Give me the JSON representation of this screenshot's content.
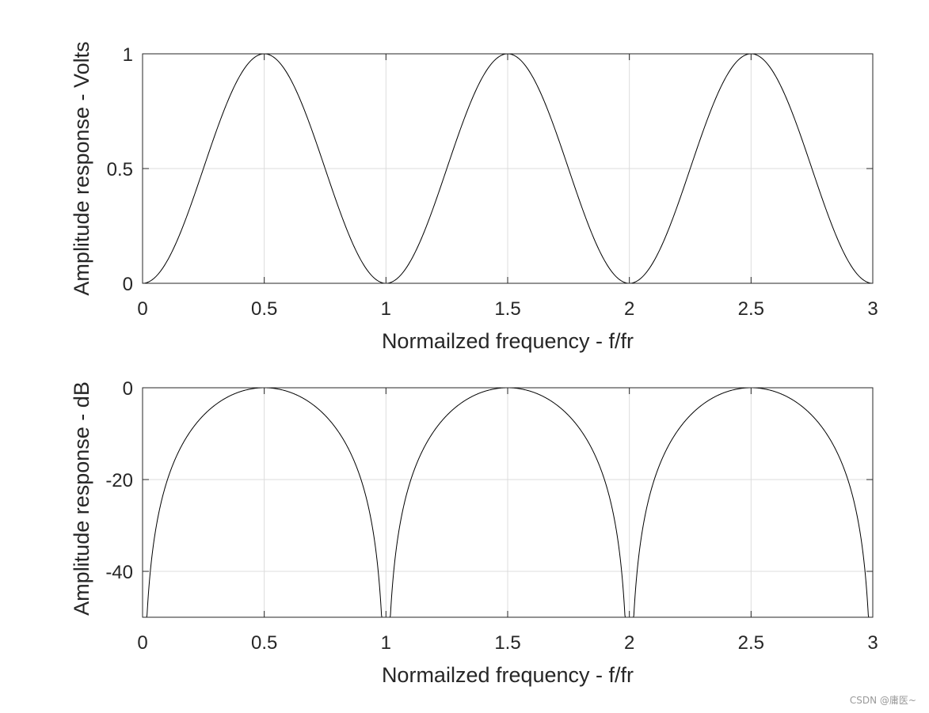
{
  "chart_data": [
    {
      "type": "line",
      "xlabel": "Normailzed frequency - f/fr",
      "ylabel": "Amplitude response - Volts",
      "xlim": [
        0,
        3
      ],
      "ylim": [
        0,
        1
      ],
      "x_ticks": [
        0,
        0.5,
        1,
        1.5,
        2,
        2.5,
        3
      ],
      "x_tick_labels": [
        "0",
        "0.5",
        "1",
        "1.5",
        "2",
        "2.5",
        "3"
      ],
      "y_ticks": [
        0,
        0.5,
        1
      ],
      "y_tick_labels": [
        "0",
        "0.5",
        "1"
      ],
      "grid": true,
      "line_color": "#000000",
      "series": [
        {
          "x": [
            0,
            0.125,
            0.25,
            0.375,
            0.5,
            0.625,
            0.75,
            0.875,
            1,
            1.125,
            1.25,
            1.375,
            1.5,
            1.625,
            1.75,
            1.875,
            2,
            2.125,
            2.25,
            2.375,
            2.5,
            2.625,
            2.75,
            2.875,
            3
          ],
          "values": [
            0,
            0.146,
            0.5,
            0.854,
            1,
            0.854,
            0.5,
            0.146,
            0,
            0.146,
            0.5,
            0.854,
            1,
            0.854,
            0.5,
            0.146,
            0,
            0.146,
            0.5,
            0.854,
            1,
            0.854,
            0.5,
            0.146,
            0
          ]
        }
      ]
    },
    {
      "type": "line",
      "xlabel": "Normailzed frequency - f/fr",
      "ylabel": "Amplitude response - dB",
      "xlim": [
        0,
        3
      ],
      "ylim": [
        -50,
        0
      ],
      "x_ticks": [
        0,
        0.5,
        1,
        1.5,
        2,
        2.5,
        3
      ],
      "x_tick_labels": [
        "0",
        "0.5",
        "1",
        "1.5",
        "2",
        "2.5",
        "3"
      ],
      "y_ticks": [
        -40,
        -20,
        0
      ],
      "y_tick_labels": [
        "-40",
        "-20",
        "0"
      ],
      "grid": true,
      "line_color": "#000000",
      "series": [
        {
          "x": [
            0,
            0.005,
            0.01,
            0.025,
            0.05,
            0.1,
            0.2,
            0.3,
            0.4,
            0.5,
            0.6,
            0.7,
            0.8,
            0.9,
            0.95,
            0.975,
            0.99,
            0.995,
            1,
            1.005,
            1.01,
            1.025,
            1.05,
            1.1,
            1.2,
            1.3,
            1.4,
            1.5,
            1.6,
            1.7,
            1.8,
            1.9,
            1.95,
            1.975,
            1.99,
            1.995,
            2,
            2.005,
            2.01,
            2.025,
            2.05,
            2.1,
            2.2,
            2.3,
            2.4,
            2.5,
            2.6,
            2.7,
            2.8,
            2.9,
            2.95,
            2.975,
            2.99,
            2.995,
            3
          ],
          "values": [
            -50,
            -40.1,
            -34.1,
            -26.1,
            -20.1,
            -14.2,
            -8.3,
            -4.6,
            -2.1,
            0,
            -2.1,
            -4.6,
            -8.3,
            -14.2,
            -20.1,
            -26.1,
            -34.1,
            -40.1,
            -50,
            -40.1,
            -34.1,
            -26.1,
            -20.1,
            -14.2,
            -8.3,
            -4.6,
            -2.1,
            0,
            -2.1,
            -4.6,
            -8.3,
            -14.2,
            -20.1,
            -26.1,
            -34.1,
            -40.1,
            -50,
            -40.1,
            -34.1,
            -26.1,
            -20.1,
            -14.2,
            -8.3,
            -4.6,
            -2.1,
            0,
            -2.1,
            -4.6,
            -8.3,
            -14.2,
            -20.1,
            -26.1,
            -34.1,
            -40.1,
            -50
          ]
        }
      ]
    }
  ],
  "watermark": "CSDN @庸医~"
}
